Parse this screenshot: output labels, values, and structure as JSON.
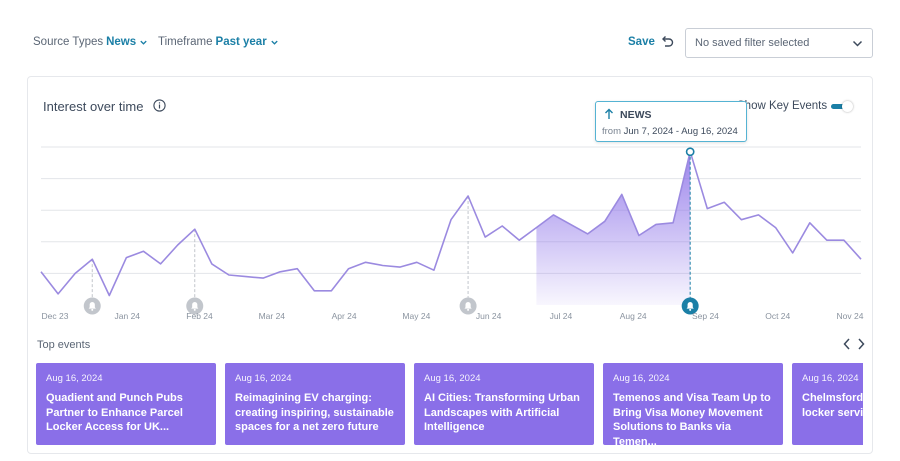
{
  "filters": {
    "source_types": {
      "label": "Source Types",
      "value": "News"
    },
    "timeframe": {
      "label": "Timeframe",
      "value": "Past year"
    },
    "save_label": "Save",
    "saved_filter_placeholder": "No saved filter selected"
  },
  "panel": {
    "title": "Interest over time",
    "key_events_label": "Show Key Events",
    "key_events_enabled": true
  },
  "tooltip": {
    "source": "NEWS",
    "from_label": "from",
    "range": "Jun 7, 2024 - Aug 16, 2024"
  },
  "colors": {
    "line": "#9b8ae0",
    "fill": "#8a6fe8",
    "accent": "#1b7fa6",
    "card": "#8a6fe8",
    "marker_gray": "#c2c6cc"
  },
  "chart_data": {
    "type": "area",
    "x_tick_labels": [
      "Dec 23",
      "Jan 24",
      "Feb 24",
      "Mar 24",
      "Apr 24",
      "May 24",
      "Jun 24",
      "Jul 24",
      "Aug 24",
      "Sep 24",
      "Oct 24",
      "Nov 24"
    ],
    "y_range": [
      0,
      5
    ],
    "grid": true,
    "values": [
      1.05,
      0.35,
      1.0,
      1.45,
      0.3,
      1.5,
      1.7,
      1.3,
      1.9,
      2.4,
      1.3,
      0.95,
      0.9,
      0.85,
      1.05,
      1.15,
      0.45,
      0.45,
      1.15,
      1.35,
      1.25,
      1.2,
      1.35,
      1.1,
      2.7,
      3.45,
      2.15,
      2.5,
      2.05,
      2.45,
      2.85,
      2.55,
      2.25,
      2.65,
      3.5,
      2.2,
      2.55,
      2.6,
      4.85,
      3.05,
      3.25,
      2.7,
      2.85,
      2.45,
      1.65,
      2.6,
      2.05,
      2.05,
      1.45
    ],
    "highlight_range": [
      29,
      38
    ],
    "selected_index": 38,
    "key_event_indices": [
      3,
      9,
      25,
      38
    ],
    "selected_key_event_index": 38
  },
  "top_events": {
    "title": "Top events",
    "items": [
      {
        "date": "Aug 16, 2024",
        "title": "Quadient and Punch Pubs Partner to Enhance Parcel Locker Access for UK..."
      },
      {
        "date": "Aug 16, 2024",
        "title": "Reimagining EV charging: creating inspiring, sustainable spaces for a net zero future"
      },
      {
        "date": "Aug 16, 2024",
        "title": "AI Cities: Transforming Urban Landscapes with Artificial Intelligence"
      },
      {
        "date": "Aug 16, 2024",
        "title": "Temenos and Visa Team Up to Bring Visa Money Movement Solutions to Banks via Temen..."
      },
      {
        "date": "Aug 16, 2024",
        "title": "Chelmsford S launches Qu locker servic"
      }
    ]
  }
}
